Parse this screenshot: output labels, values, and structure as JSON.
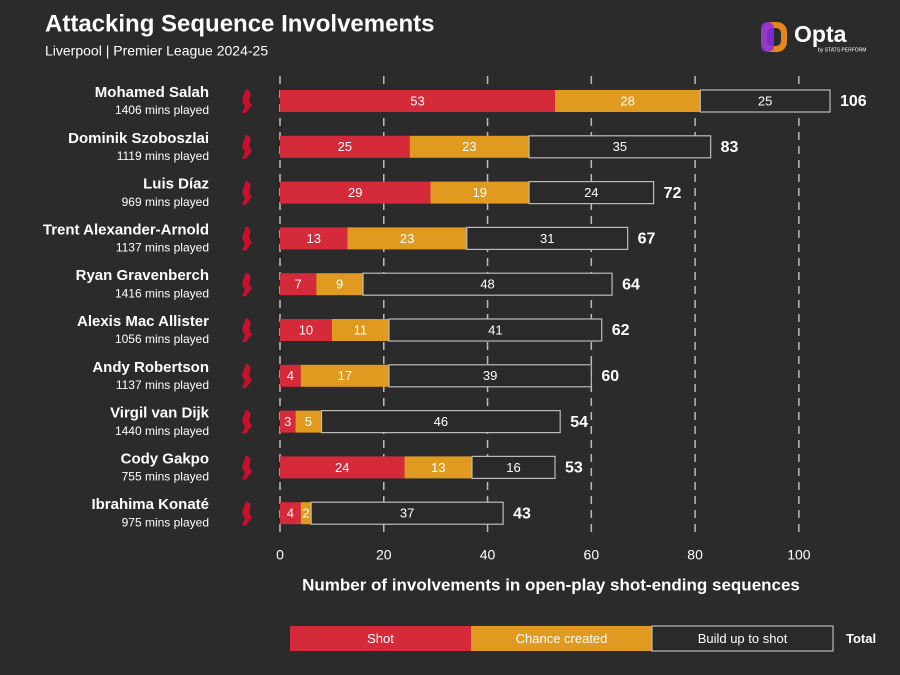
{
  "chart_data": {
    "type": "stacked-barh",
    "title": "Attacking Sequence Involvements",
    "subtitle": "Liverpool | Premier League 2024-25",
    "logo_text": "Opta",
    "logo_subtext": "by STATS PERFORM",
    "x_label": "Number of involvements in open-play shot-ending sequences",
    "categories": [
      "Mohamed Salah",
      "Dominik Szoboszlai",
      "Luis Díaz",
      "Trent Alexander-Arnold",
      "Ryan Gravenberch",
      "Alexis Mac Allister",
      "Andy Robertson",
      "Virgil van Dijk",
      "Cody Gakpo",
      "Ibrahima Konaté"
    ],
    "category_sublabels": [
      "1406 mins played",
      "1119 mins played",
      "969 mins played",
      "1137 mins played",
      "1416 mins played",
      "1056 mins played",
      "1137 mins played",
      "1440 mins played",
      "755 mins played",
      "975 mins played"
    ],
    "series": [
      {
        "name": "Shot",
        "color": "#d42a3a",
        "values": [
          53,
          25,
          29,
          13,
          7,
          10,
          4,
          3,
          24,
          4
        ]
      },
      {
        "name": "Chance created",
        "color": "#e09a1f",
        "values": [
          28,
          23,
          19,
          23,
          9,
          11,
          17,
          5,
          13,
          2
        ]
      },
      {
        "name": "Build up to shot",
        "color": "#2a2a2a",
        "values": [
          25,
          35,
          24,
          31,
          48,
          41,
          39,
          46,
          16,
          37
        ]
      }
    ],
    "totals": [
      106,
      83,
      72,
      67,
      64,
      62,
      60,
      54,
      53,
      43
    ],
    "total_label": "Total",
    "xlim": [
      0,
      106
    ],
    "xticks": [
      0,
      20,
      40,
      60,
      80,
      100
    ],
    "grid": true
  }
}
